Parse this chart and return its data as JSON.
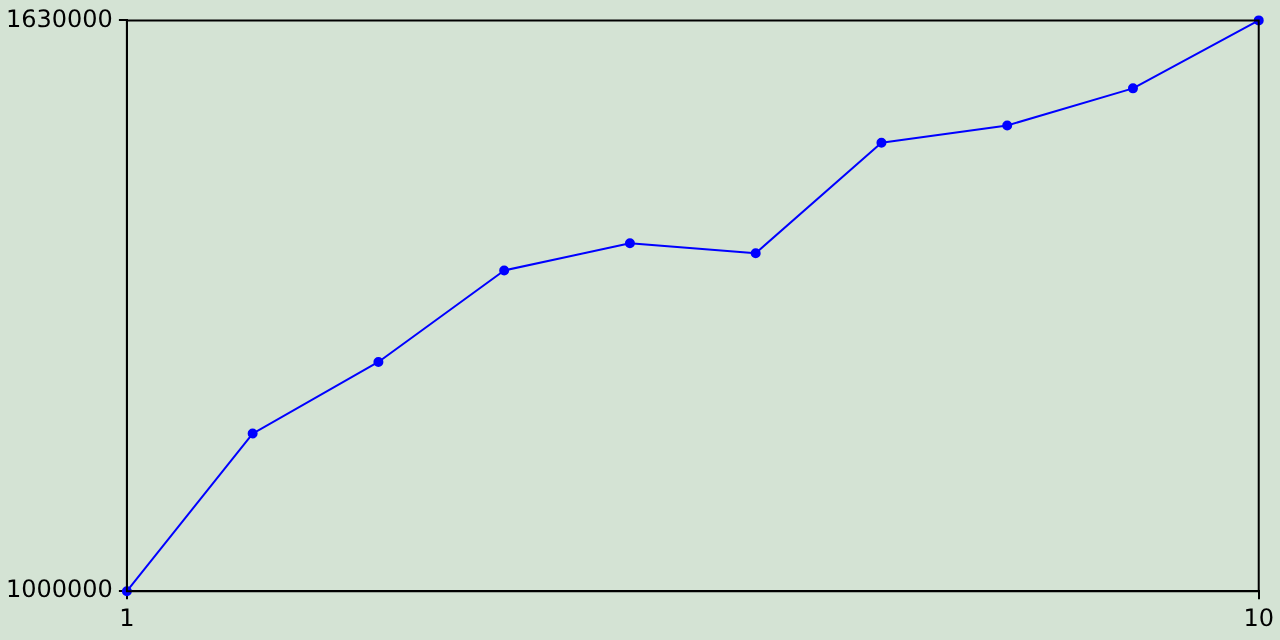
{
  "chart_data": {
    "type": "line",
    "x": [
      1,
      2,
      3,
      4,
      5,
      6,
      7,
      8,
      9,
      10
    ],
    "series": [
      {
        "color": "#0000ff",
        "values": [
          1000000,
          1174000,
          1253000,
          1354000,
          1384000,
          1373000,
          1495000,
          1514000,
          1555000,
          1630000
        ]
      }
    ],
    "xlim": [
      1,
      10
    ],
    "xticks": [
      1,
      10
    ],
    "ylim": [
      1000000,
      1630000
    ],
    "yticks": [
      1000000,
      1630000
    ],
    "grid": false,
    "marker": "circle"
  }
}
